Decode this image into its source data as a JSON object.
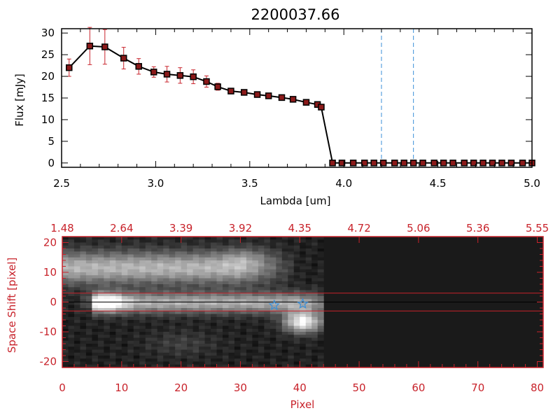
{
  "chart_data": [
    {
      "type": "line",
      "title": "2200037.66",
      "xlabel": "Lambda [um]",
      "ylabel": "Flux [mJy]",
      "xlim": [
        2.5,
        5.0
      ],
      "ylim": [
        -1,
        31
      ],
      "x_ticks": [
        "2.5",
        "3.0",
        "3.5",
        "4.0",
        "4.5",
        "5.0"
      ],
      "y_ticks": [
        "0",
        "5",
        "10",
        "15",
        "20",
        "25",
        "30"
      ],
      "line_color": "#000000",
      "marker_color": "#8b1a1a",
      "errorbar_color": "#c8232b",
      "vline_color": "#3a8fd8",
      "vlines": [
        4.2,
        4.37
      ],
      "series": [
        {
          "x": [
            2.54,
            2.65,
            2.73,
            2.83,
            2.91,
            2.99,
            3.06,
            3.13,
            3.2,
            3.27,
            3.33,
            3.4,
            3.47,
            3.54,
            3.6,
            3.67,
            3.73,
            3.8,
            3.86,
            3.88,
            3.94,
            3.99,
            4.05,
            4.11,
            4.16,
            4.21,
            4.27,
            4.32,
            4.37,
            4.42,
            4.48,
            4.53,
            4.58,
            4.64,
            4.69,
            4.74,
            4.79,
            4.84,
            4.89,
            4.95,
            5.0
          ],
          "y": [
            22,
            27,
            26.8,
            24.2,
            22.3,
            21,
            20.5,
            20.2,
            19.9,
            18.8,
            17.6,
            16.6,
            16.3,
            15.8,
            15.5,
            15.1,
            14.7,
            14,
            13.5,
            12.9,
            0,
            0,
            0,
            0,
            0,
            0,
            0,
            0,
            0,
            0,
            0,
            0,
            0,
            0,
            0,
            0,
            0,
            0,
            0,
            0,
            0
          ],
          "yerr": [
            2,
            4.3,
            4,
            2.5,
            1.8,
            1.2,
            1.8,
            1.8,
            1.6,
            1.3,
            0.8,
            0.4,
            0.3,
            0.3,
            0.3,
            0.3,
            0.3,
            0.3,
            0.3,
            0.3,
            0,
            0,
            0,
            0,
            0,
            0,
            0,
            0,
            0,
            0,
            0,
            0,
            0,
            0,
            0,
            0,
            0,
            0,
            0,
            0,
            0
          ]
        }
      ]
    },
    {
      "type": "heatmap",
      "xlabel": "Pixel",
      "ylabel": "Space Shift [pixel]",
      "xlim": [
        0,
        81
      ],
      "ylim": [
        -22,
        22
      ],
      "x_ticks": [
        "0",
        "10",
        "20",
        "30",
        "40",
        "50",
        "60",
        "70",
        "80"
      ],
      "y_ticks": [
        "-20",
        "-10",
        "0",
        "10",
        "20"
      ],
      "top_ticks": [
        "1.48",
        "2.64",
        "3.39",
        "3.92",
        "4.35",
        "4.72",
        "5.06",
        "5.36",
        "5.55"
      ],
      "axis_color": "#c8232b",
      "data_extent_x": [
        0,
        44
      ],
      "background_value": 0.1,
      "guide_lines_y": [
        3,
        -3
      ],
      "center_line_y": 0,
      "star_markers": [
        {
          "x": 35.7,
          "y": -1.1
        },
        {
          "x": 40.5,
          "y": -0.6
        }
      ],
      "features": [
        {
          "shape": "band",
          "x_range": [
            0,
            44
          ],
          "y": 11.5,
          "sigma_y": 3.8,
          "peak": 0.58,
          "fade_x": 34
        },
        {
          "shape": "band",
          "x_range": [
            5,
            44
          ],
          "y": -0.3,
          "sigma_y": 2.4,
          "peak": 0.55,
          "fade_x": 44
        },
        {
          "shape": "blob",
          "x": 7.5,
          "y": 0,
          "sx": 2.2,
          "sy": 2.2,
          "peak": 0.55
        },
        {
          "shape": "blob",
          "x": 40.5,
          "y": -6.7,
          "sx": 2.2,
          "sy": 2.5,
          "peak": 0.85
        },
        {
          "shape": "blob",
          "x": 31,
          "y": 15,
          "sx": 3,
          "sy": 2.5,
          "peak": 0.15
        },
        {
          "shape": "blob",
          "x": 20,
          "y": -14,
          "sx": 4,
          "sy": 3,
          "peak": 0.12
        }
      ]
    }
  ]
}
